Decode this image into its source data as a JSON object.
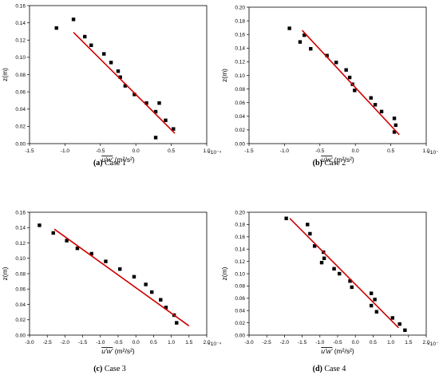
{
  "chart_data": [
    {
      "type": "scatter",
      "caption_label": "(a)",
      "caption_text": "Case 1",
      "ylabel": "z(m)",
      "xlabel": "u'w' (m²/s²)",
      "xlabel_main": "u'w'",
      "xlabel_unit": " (m²/s²)",
      "exponent_label": "×10⁻⁴",
      "xlim": [
        -1.5,
        1.0
      ],
      "ylim": [
        0.0,
        0.16
      ],
      "xticks": [
        -1.5,
        -1.0,
        -0.5,
        0.0,
        0.5,
        1.0
      ],
      "xtick_labels": [
        "-1.5",
        "-1.0",
        "-0.5",
        "0.0",
        "0.5",
        "1.0"
      ],
      "yticks": [
        0.0,
        0.02,
        0.04,
        0.06,
        0.08,
        0.1,
        0.12,
        0.14,
        0.16
      ],
      "ytick_labels": [
        "0.00",
        "0.02",
        "0.04",
        "0.06",
        "0.08",
        "0.10",
        "0.12",
        "0.14",
        "0.16"
      ],
      "series": [
        {
          "kind": "points",
          "color": "#000000",
          "x": [
            -1.12,
            -0.88,
            -0.72,
            -0.63,
            -0.45,
            -0.35,
            -0.25,
            -0.22,
            -0.15,
            -0.02,
            0.15,
            0.28,
            0.33,
            0.42,
            0.53,
            0.28
          ],
          "y": [
            0.134,
            0.144,
            0.124,
            0.114,
            0.104,
            0.094,
            0.084,
            0.077,
            0.067,
            0.057,
            0.047,
            0.037,
            0.047,
            0.027,
            0.017,
            0.007
          ]
        },
        {
          "kind": "line",
          "color": "#cc0000",
          "x": [
            -0.88,
            0.55
          ],
          "y": [
            0.129,
            0.012
          ]
        }
      ]
    },
    {
      "type": "scatter",
      "caption_label": "(b)",
      "caption_text": "Case 2",
      "ylabel": "z(m)",
      "xlabel": "u'w' (m²/s²)",
      "xlabel_main": "u'w'",
      "xlabel_unit": " (m²/s²)",
      "exponent_label": "×10⁻⁴",
      "xlim": [
        -1.5,
        1.0
      ],
      "ylim": [
        0.0,
        0.2
      ],
      "xticks": [
        -1.5,
        -1.0,
        -0.5,
        0.0,
        0.5,
        1.0
      ],
      "xtick_labels": [
        "-1.5",
        "-1.0",
        "-0.5",
        "0.0",
        "0.5",
        "1.0"
      ],
      "yticks": [
        0.0,
        0.02,
        0.04,
        0.06,
        0.08,
        0.1,
        0.12,
        0.14,
        0.16,
        0.18,
        0.2
      ],
      "ytick_labels": [
        "0.00",
        "0.02",
        "0.04",
        "0.06",
        "0.08",
        "0.10",
        "0.12",
        "0.14",
        "0.16",
        "0.18",
        "0.20"
      ],
      "series": [
        {
          "kind": "points",
          "color": "#000000",
          "x": [
            -0.93,
            -0.78,
            -0.72,
            -0.63,
            -0.4,
            -0.27,
            -0.13,
            -0.08,
            -0.04,
            -0.01,
            0.22,
            0.28,
            0.37,
            0.55,
            0.57,
            0.55
          ],
          "y": [
            0.169,
            0.149,
            0.159,
            0.139,
            0.129,
            0.119,
            0.108,
            0.097,
            0.087,
            0.078,
            0.067,
            0.057,
            0.047,
            0.037,
            0.027,
            0.017
          ]
        },
        {
          "kind": "line",
          "color": "#cc0000",
          "x": [
            -0.75,
            0.62
          ],
          "y": [
            0.166,
            0.013
          ]
        }
      ]
    },
    {
      "type": "scatter",
      "caption_label": "(c)",
      "caption_text": "Case 3",
      "ylabel": "z(m)",
      "xlabel": "u'w' (m²/s²)",
      "xlabel_main": "u'w'",
      "xlabel_unit": " (m²/s²)",
      "exponent_label": "×10⁻⁴",
      "xlim": [
        -3.0,
        2.0
      ],
      "ylim": [
        0.0,
        0.16
      ],
      "xticks": [
        -3.0,
        -2.5,
        -2.0,
        -1.5,
        -1.0,
        -0.5,
        0.0,
        0.5,
        1.0,
        1.5,
        2.0
      ],
      "xtick_labels": [
        "-3.0",
        "-2.5",
        "-2.0",
        "-1.5",
        "-1.0",
        "-0.5",
        "0.0",
        "0.5",
        "1.0",
        "1.5",
        "2.0"
      ],
      "yticks": [
        0.0,
        0.02,
        0.04,
        0.06,
        0.08,
        0.1,
        0.12,
        0.14,
        0.16
      ],
      "ytick_labels": [
        "0.00",
        "0.02",
        "0.04",
        "0.06",
        "0.08",
        "0.10",
        "0.12",
        "0.14",
        "0.16"
      ],
      "series": [
        {
          "kind": "points",
          "color": "#000000",
          "x": [
            -2.72,
            -2.33,
            -1.95,
            -1.65,
            -1.25,
            -0.85,
            -0.45,
            -0.05,
            0.28,
            0.45,
            0.7,
            0.85,
            1.08,
            1.15
          ],
          "y": [
            0.143,
            0.133,
            0.123,
            0.113,
            0.106,
            0.096,
            0.086,
            0.076,
            0.066,
            0.056,
            0.046,
            0.036,
            0.026,
            0.016
          ]
        },
        {
          "kind": "line",
          "color": "#cc0000",
          "x": [
            -2.3,
            1.5
          ],
          "y": [
            0.138,
            0.012
          ]
        }
      ]
    },
    {
      "type": "scatter",
      "caption_label": "(d)",
      "caption_text": "Case 4",
      "ylabel": "z(m)",
      "xlabel": "u'w' (m²/s²)",
      "xlabel_main": "u'w'",
      "xlabel_unit": " (m²/s²)",
      "exponent_label": "×10⁻⁴",
      "xlim": [
        -3.0,
        2.0
      ],
      "ylim": [
        0.0,
        0.2
      ],
      "xticks": [
        -3.0,
        -2.5,
        -2.0,
        -1.5,
        -1.0,
        -0.5,
        0.0,
        0.5,
        1.0,
        1.5,
        2.0
      ],
      "xtick_labels": [
        "-3.0",
        "-2.5",
        "-2.0",
        "-1.5",
        "-1.0",
        "-0.5",
        "0.0",
        "0.5",
        "1.0",
        "1.5",
        "2.0"
      ],
      "yticks": [
        0.0,
        0.02,
        0.04,
        0.06,
        0.08,
        0.1,
        0.12,
        0.14,
        0.16,
        0.18,
        0.2
      ],
      "ytick_labels": [
        "0.00",
        "0.02",
        "0.04",
        "0.06",
        "0.08",
        "0.10",
        "0.12",
        "0.14",
        "0.16",
        "0.18",
        "0.20"
      ],
      "series": [
        {
          "kind": "points",
          "color": "#000000",
          "x": [
            -1.95,
            -1.35,
            -1.28,
            -1.15,
            -0.9,
            -0.88,
            -0.95,
            -0.6,
            -0.45,
            -0.15,
            -0.1,
            0.45,
            0.55,
            0.6,
            0.45,
            1.05,
            1.25,
            1.4
          ],
          "y": [
            0.19,
            0.18,
            0.165,
            0.145,
            0.135,
            0.125,
            0.118,
            0.108,
            0.1,
            0.088,
            0.078,
            0.068,
            0.058,
            0.038,
            0.048,
            0.028,
            0.018,
            0.008
          ]
        },
        {
          "kind": "line",
          "color": "#cc0000",
          "x": [
            -1.85,
            1.22
          ],
          "y": [
            0.19,
            0.012
          ]
        }
      ]
    }
  ]
}
